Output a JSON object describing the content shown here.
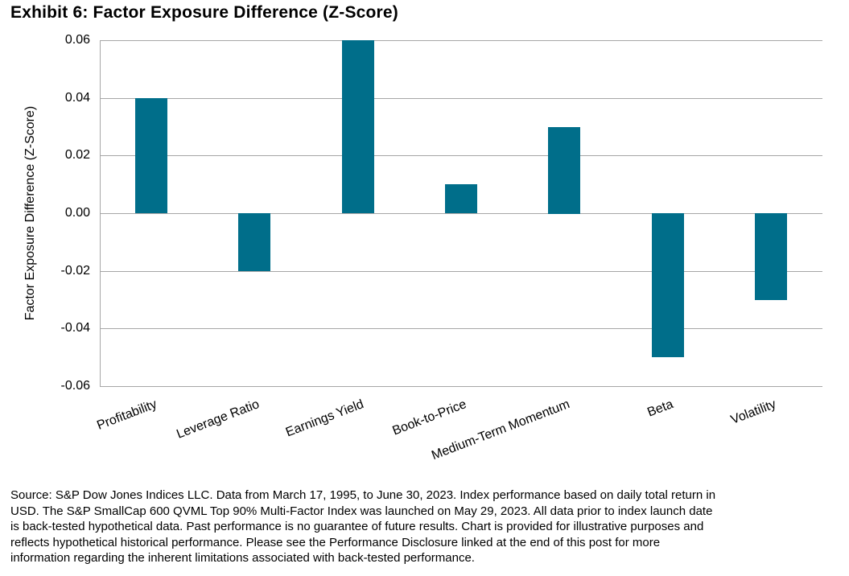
{
  "title": "Exhibit 6: Factor Exposure Difference (Z-Score)",
  "chart_data": {
    "type": "bar",
    "categories": [
      "Profitability",
      "Leverage Ratio",
      "Earnings Yield",
      "Book-to-Price",
      "Medium-Term Momentum",
      "Beta",
      "Volatility"
    ],
    "values": [
      0.04,
      -0.02,
      0.06,
      0.01,
      0.03,
      -0.05,
      -0.03
    ],
    "title": "Exhibit 6: Factor Exposure Difference (Z-Score)",
    "xlabel": "",
    "ylabel": "Factor Exposure Difference (Z-Score)",
    "ylim": [
      -0.06,
      0.06
    ],
    "ytick_step": 0.02,
    "ytick_labels": [
      "0.06",
      "0.04",
      "0.02",
      "0.00",
      "-0.02",
      "-0.04",
      "-0.06"
    ],
    "grid": true,
    "legend": "none",
    "bar_color": "#006e8a",
    "gridline_color": "#a6a6a6",
    "axis_line_color": "#a6a6a6"
  },
  "footer": {
    "lines": [
      "Source: S&P Dow Jones Indices LLC. Data from March 17, 1995, to June 30, 2023. Index performance based on daily total return in",
      "USD. The S&P SmallCap 600 QVML Top 90% Multi-Factor Index was launched on May 29, 2023. All data prior to index launch date",
      "is back-tested hypothetical data. Past performance is no guarantee of future results. Chart is provided for illustrative purposes and",
      "reflects hypothetical historical performance. Please see the Performance Disclosure linked at the end of this post for more",
      "information regarding the inherent limitations associated with back-tested performance."
    ]
  }
}
